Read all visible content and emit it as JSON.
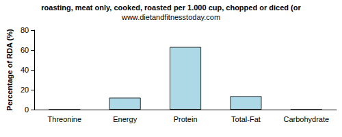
{
  "chart_data": {
    "type": "bar",
    "title": "roasting, meat only, cooked, roasted per 1.000 cup, chopped or diced (or",
    "subtitle": "www.dietandfitnesstoday.com",
    "y_label": "Percentage of RDA (%)",
    "categories": [
      "Threonine",
      "Energy",
      "Protein",
      "Total-Fat",
      "Carbohydrate"
    ],
    "values": [
      0,
      12,
      63,
      13.5,
      0
    ],
    "color": "#add8e6",
    "ylim": [
      0,
      80
    ],
    "yticks": [
      0,
      20,
      40,
      60,
      80
    ],
    "grid": false
  }
}
